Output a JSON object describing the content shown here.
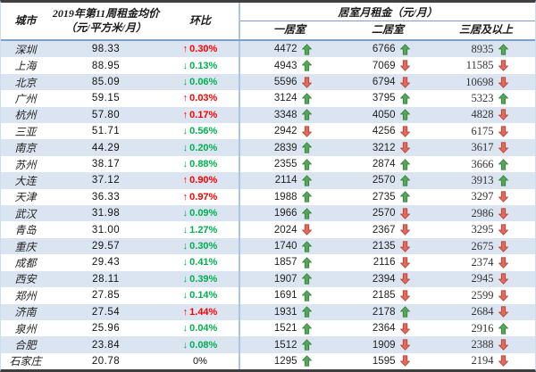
{
  "chart_data": {
    "type": "table",
    "header": {
      "city": "城市",
      "price_line1": "2019年第11周租金均价",
      "price_line2": "（元/平方米/月）",
      "wow": "环比",
      "room_group": "居室月租金（元/月）",
      "room1": "一居室",
      "room2": "二居室",
      "room3": "三居及以上"
    },
    "rows": [
      {
        "city": "深圳",
        "price": "98.33",
        "wow": "0.30%",
        "wow_dir": "up",
        "rooms": [
          {
            "v": "4472",
            "d": "up"
          },
          {
            "v": "6766",
            "d": "up"
          },
          {
            "v": "8935",
            "d": "up"
          }
        ]
      },
      {
        "city": "上海",
        "price": "88.95",
        "wow": "0.13%",
        "wow_dir": "down",
        "rooms": [
          {
            "v": "4943",
            "d": "up"
          },
          {
            "v": "7069",
            "d": "down"
          },
          {
            "v": "11585",
            "d": "down"
          }
        ]
      },
      {
        "city": "北京",
        "price": "85.09",
        "wow": "0.06%",
        "wow_dir": "down",
        "rooms": [
          {
            "v": "5596",
            "d": "down"
          },
          {
            "v": "6794",
            "d": "down"
          },
          {
            "v": "10698",
            "d": "down"
          }
        ]
      },
      {
        "city": "广州",
        "price": "59.15",
        "wow": "0.03%",
        "wow_dir": "up",
        "rooms": [
          {
            "v": "3124",
            "d": "up"
          },
          {
            "v": "3795",
            "d": "up"
          },
          {
            "v": "5323",
            "d": "up"
          }
        ]
      },
      {
        "city": "杭州",
        "price": "57.80",
        "wow": "0.17%",
        "wow_dir": "up",
        "rooms": [
          {
            "v": "3348",
            "d": "up"
          },
          {
            "v": "4050",
            "d": "up"
          },
          {
            "v": "4828",
            "d": "down"
          }
        ]
      },
      {
        "city": "三亚",
        "price": "51.71",
        "wow": "0.56%",
        "wow_dir": "down",
        "rooms": [
          {
            "v": "2942",
            "d": "down"
          },
          {
            "v": "4256",
            "d": "down"
          },
          {
            "v": "6175",
            "d": "down"
          }
        ]
      },
      {
        "city": "南京",
        "price": "44.29",
        "wow": "0.20%",
        "wow_dir": "down",
        "rooms": [
          {
            "v": "2839",
            "d": "up"
          },
          {
            "v": "3212",
            "d": "down"
          },
          {
            "v": "3617",
            "d": "down"
          }
        ]
      },
      {
        "city": "苏州",
        "price": "38.17",
        "wow": "0.88%",
        "wow_dir": "down",
        "rooms": [
          {
            "v": "2355",
            "d": "up"
          },
          {
            "v": "2874",
            "d": "up"
          },
          {
            "v": "3666",
            "d": "up"
          }
        ]
      },
      {
        "city": "大连",
        "price": "37.12",
        "wow": "0.90%",
        "wow_dir": "up",
        "rooms": [
          {
            "v": "2114",
            "d": "up"
          },
          {
            "v": "2570",
            "d": "up"
          },
          {
            "v": "3913",
            "d": "up"
          }
        ]
      },
      {
        "city": "天津",
        "price": "36.33",
        "wow": "0.97%",
        "wow_dir": "up",
        "rooms": [
          {
            "v": "1988",
            "d": "up"
          },
          {
            "v": "2735",
            "d": "up"
          },
          {
            "v": "3297",
            "d": "down"
          }
        ]
      },
      {
        "city": "武汉",
        "price": "31.98",
        "wow": "0.09%",
        "wow_dir": "down",
        "rooms": [
          {
            "v": "1966",
            "d": "up"
          },
          {
            "v": "2570",
            "d": "down"
          },
          {
            "v": "2986",
            "d": "down"
          }
        ]
      },
      {
        "city": "青岛",
        "price": "31.00",
        "wow": "1.27%",
        "wow_dir": "down",
        "rooms": [
          {
            "v": "2024",
            "d": "down"
          },
          {
            "v": "2367",
            "d": "down"
          },
          {
            "v": "3295",
            "d": "down"
          }
        ]
      },
      {
        "city": "重庆",
        "price": "29.57",
        "wow": "0.30%",
        "wow_dir": "down",
        "rooms": [
          {
            "v": "1740",
            "d": "up"
          },
          {
            "v": "2135",
            "d": "down"
          },
          {
            "v": "2675",
            "d": "down"
          }
        ]
      },
      {
        "city": "成都",
        "price": "29.43",
        "wow": "0.41%",
        "wow_dir": "down",
        "rooms": [
          {
            "v": "1857",
            "d": "up"
          },
          {
            "v": "2116",
            "d": "down"
          },
          {
            "v": "2374",
            "d": "down"
          }
        ]
      },
      {
        "city": "西安",
        "price": "28.11",
        "wow": "0.39%",
        "wow_dir": "down",
        "rooms": [
          {
            "v": "1907",
            "d": "up"
          },
          {
            "v": "2394",
            "d": "down"
          },
          {
            "v": "2945",
            "d": "down"
          }
        ]
      },
      {
        "city": "郑州",
        "price": "27.85",
        "wow": "0.14%",
        "wow_dir": "down",
        "rooms": [
          {
            "v": "1691",
            "d": "up"
          },
          {
            "v": "2185",
            "d": "down"
          },
          {
            "v": "2599",
            "d": "down"
          }
        ]
      },
      {
        "city": "济南",
        "price": "27.54",
        "wow": "1.44%",
        "wow_dir": "up",
        "rooms": [
          {
            "v": "1931",
            "d": "up"
          },
          {
            "v": "2178",
            "d": "up"
          },
          {
            "v": "2684",
            "d": "down"
          }
        ]
      },
      {
        "city": "泉州",
        "price": "25.96",
        "wow": "0.04%",
        "wow_dir": "down",
        "rooms": [
          {
            "v": "1521",
            "d": "up"
          },
          {
            "v": "2364",
            "d": "down"
          },
          {
            "v": "2916",
            "d": "up"
          }
        ]
      },
      {
        "city": "合肥",
        "price": "23.84",
        "wow": "0.08%",
        "wow_dir": "down",
        "rooms": [
          {
            "v": "1512",
            "d": "up"
          },
          {
            "v": "1909",
            "d": "down"
          },
          {
            "v": "2388",
            "d": "down"
          }
        ]
      },
      {
        "city": "石家庄",
        "price": "20.78",
        "wow": "0%",
        "wow_dir": "flat",
        "rooms": [
          {
            "v": "1295",
            "d": "up"
          },
          {
            "v": "1595",
            "d": "down"
          },
          {
            "v": "2194",
            "d": "down"
          }
        ]
      }
    ]
  },
  "icons": {
    "up_char": "↑",
    "down_char": "↓"
  },
  "colors": {
    "stripe": "#dbe5f1",
    "wow_up_text": "#fe0000",
    "wow_down_text": "#00b050",
    "arrow_up_fill": "#57a55a",
    "arrow_up_stroke": "#2e7d36",
    "arrow_down_fill": "#e2695c",
    "arrow_down_stroke": "#b03a2e",
    "rule_blue": "#7ba0cc",
    "divider_blue": "#a9c5e2",
    "frame_dark": "#3f3f3f"
  }
}
